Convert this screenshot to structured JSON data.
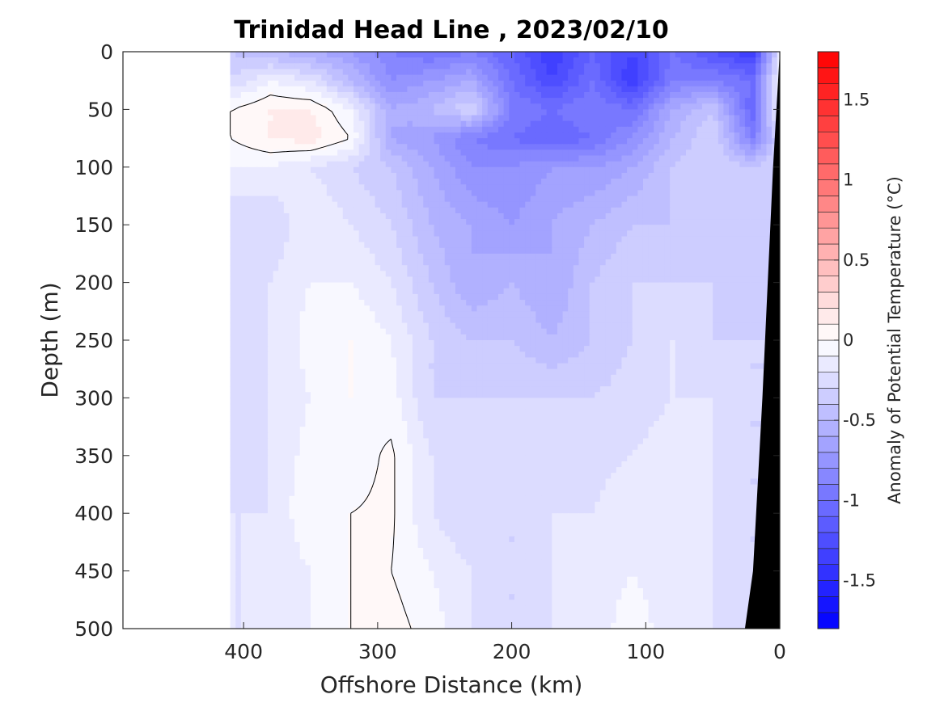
{
  "chart_data": {
    "type": "heatmap",
    "title": "Trinidad Head Line , 2023/02/10",
    "xlabel": "Offshore Distance (km)",
    "ylabel": "Depth (m)",
    "xlim": [
      490,
      0
    ],
    "ylim": [
      500,
      0
    ],
    "x_reversed": true,
    "y_reversed": true,
    "xticks": [
      400,
      300,
      200,
      100,
      0
    ],
    "yticks": [
      0,
      50,
      100,
      150,
      200,
      250,
      300,
      350,
      400,
      450,
      500
    ],
    "colorbar": {
      "label": "Anomaly of Potential Temperature (°C)",
      "range": [
        -1.8,
        1.8
      ],
      "step": 0.1,
      "ticks": [
        -1.5,
        -1,
        -0.5,
        0,
        0.5,
        1,
        1.5
      ],
      "colors": {
        "min": "#0000ff",
        "mid": "#ffffff",
        "max": "#ff0000"
      }
    },
    "data_extent_km": [
      0,
      410
    ],
    "contour_level": 0,
    "grid": {
      "x_km": [
        410,
        380,
        350,
        320,
        290,
        260,
        230,
        200,
        170,
        140,
        110,
        80,
        50,
        20,
        0
      ],
      "depth_m": [
        0,
        25,
        50,
        75,
        100,
        150,
        200,
        250,
        300,
        350,
        400,
        450,
        500
      ]
    },
    "anomaly": [
      [
        -0.4,
        -0.5,
        -0.6,
        -0.7,
        -0.9,
        -1.0,
        -0.9,
        -1.1,
        -1.4,
        -1.1,
        -1.3,
        -1.0,
        -1.2,
        -1.4,
        -0.2
      ],
      [
        -0.3,
        -0.1,
        -0.2,
        -0.5,
        -0.8,
        -0.7,
        -0.6,
        -1.0,
        -1.3,
        -1.0,
        -1.4,
        -0.9,
        -0.9,
        -1.0,
        -0.1
      ],
      [
        0.0,
        0.1,
        0.1,
        -0.1,
        -0.6,
        -0.5,
        -0.3,
        -0.9,
        -1.0,
        -0.9,
        -1.0,
        -0.6,
        -0.4,
        -1.1,
        0.0
      ],
      [
        0.0,
        0.1,
        0.15,
        0.0,
        -0.6,
        -0.7,
        -0.9,
        -1.0,
        -1.1,
        -1.0,
        -0.8,
        -0.5,
        -0.3,
        -0.9,
        -0.3
      ],
      [
        -0.1,
        -0.1,
        -0.2,
        -0.3,
        -0.4,
        -0.6,
        -0.8,
        -0.8,
        -0.7,
        -0.7,
        -0.6,
        -0.4,
        -0.3,
        -0.4,
        -0.3
      ],
      [
        -0.3,
        -0.3,
        -0.1,
        -0.2,
        -0.3,
        -0.5,
        -0.6,
        -0.7,
        -0.6,
        -0.5,
        -0.4,
        -0.4,
        -0.3,
        -0.4,
        -0.3
      ],
      [
        -0.3,
        -0.2,
        -0.1,
        -0.1,
        -0.2,
        -0.4,
        -0.6,
        -0.5,
        -0.6,
        -0.4,
        -0.3,
        -0.3,
        -0.3,
        -0.4,
        -0.3
      ],
      [
        -0.3,
        -0.2,
        -0.05,
        0.0,
        -0.1,
        -0.3,
        -0.4,
        -0.4,
        -0.5,
        -0.4,
        -0.3,
        -0.2,
        -0.3,
        -0.3,
        -0.3
      ],
      [
        -0.3,
        -0.2,
        -0.1,
        0.0,
        -0.05,
        -0.3,
        -0.3,
        -0.3,
        -0.3,
        -0.3,
        -0.25,
        -0.2,
        -0.2,
        -0.3,
        -0.3
      ],
      [
        -0.25,
        -0.2,
        -0.05,
        -0.05,
        0.02,
        -0.2,
        -0.3,
        -0.25,
        -0.25,
        -0.25,
        -0.2,
        -0.15,
        -0.2,
        -0.3,
        -0.3
      ],
      [
        -0.2,
        -0.2,
        0.0,
        0.0,
        0.02,
        -0.2,
        -0.3,
        -0.3,
        -0.2,
        -0.2,
        -0.1,
        -0.1,
        -0.2,
        -0.3,
        -0.3
      ],
      [
        -0.2,
        -0.2,
        -0.1,
        0.0,
        0.0,
        -0.1,
        -0.2,
        -0.3,
        -0.2,
        -0.15,
        -0.1,
        -0.15,
        -0.2,
        -0.3,
        -0.3
      ],
      [
        -0.2,
        -0.2,
        -0.1,
        0.0,
        0.05,
        -0.05,
        -0.2,
        -0.3,
        -0.2,
        -0.15,
        -0.05,
        -0.15,
        -0.2,
        -0.3,
        -0.3
      ]
    ],
    "bathymetry_km_at_depth": [
      [
        0,
        0
      ],
      [
        5,
        100
      ],
      [
        13,
        300
      ],
      [
        20,
        450
      ],
      [
        26,
        500
      ]
    ]
  }
}
